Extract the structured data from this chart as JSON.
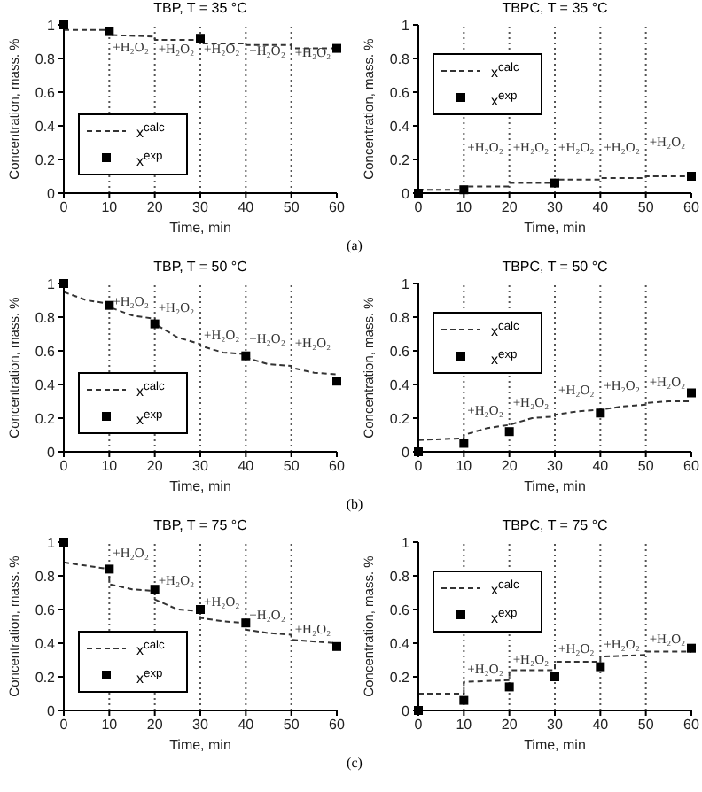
{
  "chart_data": [
    {
      "type": "line",
      "title": "TBP, T = 35 °C",
      "xlabel": "Time, min",
      "ylabel": "Concentration, mass. %",
      "xlim": [
        0,
        60
      ],
      "ylim": [
        0,
        1
      ],
      "xticks": [
        0,
        10,
        20,
        30,
        40,
        50,
        60
      ],
      "yticks": [
        0,
        0.2,
        0.4,
        0.6,
        0.8,
        1
      ],
      "legend": "left",
      "series": [
        {
          "name": "x$^{calc}$",
          "type": "line",
          "color": "#333333",
          "line_style": "dashed",
          "marker": "none",
          "x": [
            0,
            10,
            10,
            20,
            20,
            30,
            30,
            40,
            40,
            50,
            50,
            60
          ],
          "values": [
            0.97,
            0.97,
            0.94,
            0.93,
            0.91,
            0.91,
            0.89,
            0.89,
            0.88,
            0.88,
            0.86,
            0.86
          ]
        },
        {
          "name": "x$^{exp}$",
          "type": "scatter",
          "color": "#000000",
          "marker": "square",
          "x": [
            0,
            10,
            30,
            60
          ],
          "values": [
            1,
            0.96,
            0.92,
            0.86
          ]
        }
      ],
      "ref_lines": [
        {
          "axis": "x",
          "value": 10,
          "line_style": "dotted",
          "color": "#555555"
        },
        {
          "axis": "x",
          "value": 20,
          "line_style": "dotted",
          "color": "#555555"
        },
        {
          "axis": "x",
          "value": 30,
          "line_style": "dotted",
          "color": "#555555"
        },
        {
          "axis": "x",
          "value": 40,
          "line_style": "dotted",
          "color": "#555555"
        },
        {
          "axis": "x",
          "value": 50,
          "line_style": "dotted",
          "color": "#555555"
        }
      ],
      "annotations": [
        {
          "text": "+H₂O₂",
          "x": 10,
          "y": 0.84
        },
        {
          "text": "+H₂O₂",
          "x": 20,
          "y": 0.83
        },
        {
          "text": "+H₂O₂",
          "x": 30,
          "y": 0.83
        },
        {
          "text": "+H₂O₂",
          "x": 40,
          "y": 0.82
        },
        {
          "text": "+H₂O₂",
          "x": 50,
          "y": 0.81
        },
        "(a)"
      ]
    },
    {
      "type": "line",
      "title": "TBPC, T = 35 °C",
      "xlabel": "Time, min",
      "ylabel": "Concentration, mass. %",
      "xlim": [
        0,
        60
      ],
      "ylim": [
        0,
        1
      ],
      "xticks": [
        0,
        10,
        20,
        30,
        40,
        50,
        60
      ],
      "yticks": [
        0,
        0.2,
        0.4,
        0.6,
        0.8,
        1
      ],
      "legend": "top left",
      "series": [
        {
          "name": "x$^{calc}$",
          "type": "line",
          "color": "#333333",
          "line_style": "dashed",
          "marker": "none",
          "x": [
            0,
            10,
            10,
            20,
            20,
            30,
            30,
            40,
            40,
            50,
            50,
            60
          ],
          "values": [
            0.02,
            0.02,
            0.04,
            0.04,
            0.06,
            0.06,
            0.08,
            0.08,
            0.09,
            0.09,
            0.1,
            0.1
          ]
        },
        {
          "name": "x$^{exp}$",
          "type": "scatter",
          "color": "#000000",
          "marker": "square",
          "x": [
            0,
            10,
            30,
            60
          ],
          "values": [
            0,
            0.02,
            0.06,
            0.1
          ]
        }
      ],
      "ref_lines": [
        {
          "axis": "x",
          "value": 10,
          "line_style": "dotted",
          "color": "#555555"
        },
        {
          "axis": "x",
          "value": 20,
          "line_style": "dotted",
          "color": "#555555"
        },
        {
          "axis": "x",
          "value": 30,
          "line_style": "dotted",
          "color": "#555555"
        },
        {
          "axis": "x",
          "value": 40,
          "line_style": "dotted",
          "color": "#555555"
        },
        {
          "axis": "x",
          "value": 50,
          "line_style": "dotted",
          "color": "#555555"
        }
      ],
      "annotations": [
        {
          "text": "+H₂O₂",
          "x": 10,
          "y": 0.25
        },
        {
          "text": "+H₂O₂",
          "x": 20,
          "y": 0.25
        },
        {
          "text": "+H₂O₂",
          "x": 30,
          "y": 0.25
        },
        {
          "text": "+H₂O₂",
          "x": 40,
          "y": 0.25
        },
        {
          "text": "+H₂O₂",
          "x": 50,
          "y": 0.28
        }
      ]
    },
    {
      "type": "line",
      "title": "TBP, T = 50 °C",
      "xlabel": "Time, min",
      "ylabel": "Concentration, mass. %",
      "xlim": [
        0,
        60
      ],
      "ylim": [
        0,
        1
      ],
      "xticks": [
        0,
        10,
        20,
        30,
        40,
        50,
        60
      ],
      "yticks": [
        0,
        0.2,
        0.4,
        0.6,
        0.8,
        1
      ],
      "legend": "left",
      "series": [
        {
          "name": "x$^{calc}$",
          "type": "line",
          "color": "#333333",
          "line_style": "dashed",
          "marker": "none",
          "x": [
            0,
            5,
            10,
            10,
            15,
            20,
            20,
            25,
            30,
            30,
            35,
            40,
            40,
            45,
            50,
            50,
            55,
            60
          ],
          "values": [
            0.95,
            0.9,
            0.88,
            0.86,
            0.81,
            0.79,
            0.76,
            0.68,
            0.64,
            0.63,
            0.59,
            0.58,
            0.56,
            0.52,
            0.51,
            0.5,
            0.47,
            0.46
          ]
        },
        {
          "name": "x$^{exp}$",
          "type": "scatter",
          "color": "#000000",
          "marker": "square",
          "x": [
            0,
            10,
            20,
            40,
            60
          ],
          "values": [
            1,
            0.87,
            0.76,
            0.57,
            0.42
          ]
        }
      ],
      "ref_lines": [
        {
          "axis": "x",
          "value": 10,
          "line_style": "dotted",
          "color": "#555555"
        },
        {
          "axis": "x",
          "value": 20,
          "line_style": "dotted",
          "color": "#555555"
        },
        {
          "axis": "x",
          "value": 30,
          "line_style": "dotted",
          "color": "#555555"
        },
        {
          "axis": "x",
          "value": 40,
          "line_style": "dotted",
          "color": "#555555"
        },
        {
          "axis": "x",
          "value": 50,
          "line_style": "dotted",
          "color": "#555555"
        }
      ],
      "annotations": [
        {
          "text": "+H₂O₂",
          "x": 10,
          "y": 0.87
        },
        {
          "text": "+H₂O₂",
          "x": 20,
          "y": 0.83
        },
        {
          "text": "+H₂O₂",
          "x": 30,
          "y": 0.67
        },
        {
          "text": "+H₂O₂",
          "x": 40,
          "y": 0.65
        },
        {
          "text": "+H₂O₂",
          "x": 50,
          "y": 0.62
        },
        "(b)"
      ]
    },
    {
      "type": "line",
      "title": "TBPC, T = 50 °C",
      "xlabel": "Time, min",
      "ylabel": "Concentration, mass. %",
      "xlim": [
        0,
        60
      ],
      "ylim": [
        0,
        1
      ],
      "xticks": [
        0,
        10,
        20,
        30,
        40,
        50,
        60
      ],
      "yticks": [
        0,
        0.2,
        0.4,
        0.6,
        0.8,
        1
      ],
      "legend": "top left",
      "series": [
        {
          "name": "x$^{calc}$",
          "type": "line",
          "color": "#333333",
          "line_style": "dashed",
          "marker": "none",
          "x": [
            0,
            10,
            10,
            15,
            20,
            25,
            30,
            30,
            35,
            40,
            45,
            50,
            50,
            55,
            60
          ],
          "values": [
            0.07,
            0.08,
            0.1,
            0.14,
            0.16,
            0.2,
            0.21,
            0.22,
            0.24,
            0.25,
            0.27,
            0.28,
            0.29,
            0.3,
            0.3
          ]
        },
        {
          "name": "x$^{exp}$",
          "type": "scatter",
          "color": "#000000",
          "marker": "square",
          "x": [
            0,
            10,
            20,
            40,
            60
          ],
          "values": [
            0,
            0.05,
            0.12,
            0.23,
            0.35
          ]
        }
      ],
      "ref_lines": [
        {
          "axis": "x",
          "value": 10,
          "line_style": "dotted",
          "color": "#555555"
        },
        {
          "axis": "x",
          "value": 20,
          "line_style": "dotted",
          "color": "#555555"
        },
        {
          "axis": "x",
          "value": 30,
          "line_style": "dotted",
          "color": "#555555"
        },
        {
          "axis": "x",
          "value": 40,
          "line_style": "dotted",
          "color": "#555555"
        },
        {
          "axis": "x",
          "value": 50,
          "line_style": "dotted",
          "color": "#555555"
        }
      ],
      "annotations": [
        {
          "text": "+H₂O₂",
          "x": 10,
          "y": 0.22
        },
        {
          "text": "+H₂O₂",
          "x": 20,
          "y": 0.27
        },
        {
          "text": "+H₂O₂",
          "x": 30,
          "y": 0.34
        },
        {
          "text": "+H₂O₂",
          "x": 40,
          "y": 0.37
        },
        {
          "text": "+H₂O₂",
          "x": 50,
          "y": 0.39
        }
      ]
    },
    {
      "type": "line",
      "title": "TBP, T = 75 °C",
      "xlabel": "Time, min",
      "ylabel": "Concentration, mass. %",
      "xlim": [
        0,
        60
      ],
      "ylim": [
        0,
        1
      ],
      "xticks": [
        0,
        10,
        20,
        30,
        40,
        50,
        60
      ],
      "yticks": [
        0,
        0.2,
        0.4,
        0.6,
        0.8,
        1
      ],
      "legend": "left",
      "series": [
        {
          "name": "x$^{calc}$",
          "type": "line",
          "color": "#333333",
          "line_style": "dashed",
          "marker": "none",
          "x": [
            0,
            10,
            10,
            15,
            20,
            20,
            25,
            30,
            30,
            35,
            40,
            40,
            45,
            50,
            50,
            60
          ],
          "values": [
            0.88,
            0.84,
            0.75,
            0.72,
            0.71,
            0.66,
            0.6,
            0.59,
            0.55,
            0.53,
            0.52,
            0.48,
            0.46,
            0.45,
            0.42,
            0.4
          ]
        },
        {
          "name": "x$^{exp}$",
          "type": "scatter",
          "color": "#000000",
          "marker": "square",
          "x": [
            0,
            10,
            20,
            30,
            40,
            60
          ],
          "values": [
            1,
            0.84,
            0.72,
            0.6,
            0.52,
            0.38
          ]
        }
      ],
      "ref_lines": [
        {
          "axis": "x",
          "value": 10,
          "line_style": "dotted",
          "color": "#555555"
        },
        {
          "axis": "x",
          "value": 20,
          "line_style": "dotted",
          "color": "#555555"
        },
        {
          "axis": "x",
          "value": 30,
          "line_style": "dotted",
          "color": "#555555"
        },
        {
          "axis": "x",
          "value": 40,
          "line_style": "dotted",
          "color": "#555555"
        },
        {
          "axis": "x",
          "value": 50,
          "line_style": "dotted",
          "color": "#555555"
        }
      ],
      "annotations": [
        {
          "text": "+H₂O₂",
          "x": 10,
          "y": 0.91
        },
        {
          "text": "+H₂O₂",
          "x": 20,
          "y": 0.75
        },
        {
          "text": "+H₂O₂",
          "x": 30,
          "y": 0.62
        },
        {
          "text": "+H₂O₂",
          "x": 40,
          "y": 0.54
        },
        {
          "text": "+H₂O₂",
          "x": 50,
          "y": 0.46
        },
        "(c)"
      ]
    },
    {
      "type": "line",
      "title": "TBPC, T = 75 °C",
      "xlabel": "Time, min",
      "ylabel": "Concentration, mass. %",
      "xlim": [
        0,
        60
      ],
      "ylim": [
        0,
        1
      ],
      "xticks": [
        0,
        10,
        20,
        30,
        40,
        50,
        60
      ],
      "yticks": [
        0,
        0.2,
        0.4,
        0.6,
        0.8,
        1
      ],
      "legend": "top left",
      "series": [
        {
          "name": "x$^{calc}$",
          "type": "line",
          "color": "#333333",
          "line_style": "dashed",
          "marker": "none",
          "x": [
            0,
            10,
            10,
            20,
            20,
            30,
            30,
            40,
            40,
            50,
            50,
            60
          ],
          "values": [
            0.1,
            0.1,
            0.17,
            0.18,
            0.24,
            0.24,
            0.29,
            0.29,
            0.32,
            0.33,
            0.35,
            0.35
          ]
        },
        {
          "name": "x$^{exp}$",
          "type": "scatter",
          "color": "#000000",
          "marker": "square",
          "x": [
            0,
            10,
            20,
            30,
            40,
            60
          ],
          "values": [
            0,
            0.06,
            0.14,
            0.2,
            0.26,
            0.37
          ]
        }
      ],
      "ref_lines": [
        {
          "axis": "x",
          "value": 10,
          "line_style": "dotted",
          "color": "#555555"
        },
        {
          "axis": "x",
          "value": 20,
          "line_style": "dotted",
          "color": "#555555"
        },
        {
          "axis": "x",
          "value": 30,
          "line_style": "dotted",
          "color": "#555555"
        },
        {
          "axis": "x",
          "value": 40,
          "line_style": "dotted",
          "color": "#555555"
        },
        {
          "axis": "x",
          "value": 50,
          "line_style": "dotted",
          "color": "#555555"
        }
      ],
      "annotations": [
        {
          "text": "+H₂O₂",
          "x": 10,
          "y": 0.22
        },
        {
          "text": "+H₂O₂",
          "x": 20,
          "y": 0.28
        },
        {
          "text": "+H₂O₂",
          "x": 30,
          "y": 0.34
        },
        {
          "text": "+H₂O₂",
          "x": 40,
          "y": 0.37
        },
        {
          "text": "+H₂O₂",
          "x": 50,
          "y": 0.4
        }
      ]
    }
  ]
}
